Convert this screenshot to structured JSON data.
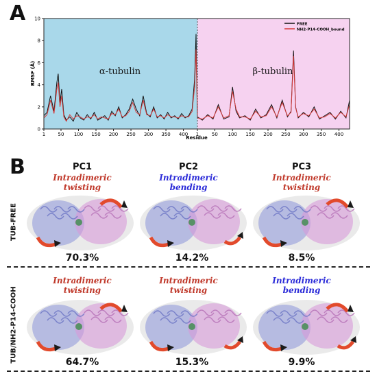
{
  "panel_a": {
    "letter": "A"
  },
  "panel_b": {
    "letter": "B"
  },
  "colors": {
    "alpha_region": "#a9d8ea",
    "beta_region": "#f6d2f0",
    "free_line": "#111111",
    "bound_line": "#d63a3a",
    "red_text": "#c0392b",
    "blue_text": "#2a2ad8",
    "alpha_subunit": "#8b93d8",
    "beta_subunit": "#d79ad8"
  },
  "chart_data": {
    "type": "line",
    "ylabel": "RMSF (Å)",
    "xlabel": "Residue",
    "ylim": [
      0,
      10
    ],
    "yticks": [
      "0",
      "2",
      "4",
      "6",
      "8",
      "10"
    ],
    "regions": [
      {
        "name": "α-tubulin",
        "xticks": [
          "1",
          "50",
          "100",
          "150",
          "200",
          "250",
          "300",
          "350",
          "400"
        ],
        "length": 440
      },
      {
        "name": "β-tubulin",
        "xticks": [
          "1",
          "50",
          "100",
          "150",
          "200",
          "250",
          "300",
          "350",
          "400"
        ],
        "length": 430
      }
    ],
    "legend_position": "top-right",
    "series": [
      {
        "name": "FREE",
        "color": "#111111",
        "alpha_x": [
          1,
          10,
          20,
          30,
          38,
          42,
          47,
          52,
          58,
          65,
          75,
          85,
          95,
          105,
          115,
          125,
          135,
          145,
          155,
          165,
          175,
          185,
          195,
          205,
          215,
          225,
          235,
          245,
          255,
          265,
          275,
          285,
          295,
          305,
          315,
          325,
          335,
          345,
          355,
          365,
          375,
          385,
          395,
          405,
          415,
          425,
          432,
          436,
          440
        ],
        "alpha_y": [
          1.2,
          1.5,
          3.0,
          1.6,
          4.2,
          5.0,
          2.4,
          3.6,
          1.3,
          0.8,
          1.1,
          0.7,
          1.5,
          1.0,
          0.8,
          1.3,
          0.9,
          1.5,
          0.8,
          1.0,
          1.2,
          0.8,
          1.6,
          1.2,
          2.0,
          1.0,
          1.3,
          1.8,
          2.7,
          1.8,
          1.2,
          3.0,
          1.4,
          1.1,
          2.0,
          1.0,
          1.3,
          0.9,
          1.5,
          1.0,
          1.2,
          0.9,
          1.4,
          1.0,
          1.2,
          1.8,
          4.5,
          8.6,
          1.0
        ],
        "beta_x": [
          1,
          15,
          30,
          45,
          60,
          75,
          90,
          100,
          110,
          120,
          135,
          150,
          165,
          180,
          195,
          210,
          225,
          240,
          255,
          265,
          272,
          278,
          285,
          300,
          315,
          330,
          345,
          360,
          375,
          390,
          405,
          420,
          430
        ],
        "beta_y": [
          1.1,
          0.8,
          1.3,
          0.9,
          2.2,
          0.9,
          1.1,
          3.8,
          1.6,
          1.0,
          1.2,
          0.8,
          1.8,
          1.0,
          1.3,
          2.2,
          1.0,
          2.6,
          1.1,
          1.6,
          7.1,
          2.0,
          1.0,
          1.5,
          1.1,
          2.0,
          0.9,
          1.2,
          1.5,
          0.9,
          1.6,
          1.0,
          2.6
        ]
      },
      {
        "name": "NH2-P14-COOH_bound",
        "color": "#d63a3a",
        "alpha_x": [
          1,
          10,
          20,
          30,
          38,
          42,
          47,
          52,
          58,
          65,
          75,
          85,
          95,
          105,
          115,
          125,
          135,
          145,
          155,
          165,
          175,
          185,
          195,
          205,
          215,
          225,
          235,
          245,
          255,
          265,
          275,
          285,
          295,
          305,
          315,
          325,
          335,
          345,
          355,
          365,
          375,
          385,
          395,
          405,
          415,
          425,
          432,
          436,
          440
        ],
        "alpha_y": [
          1.0,
          1.3,
          2.6,
          1.4,
          3.6,
          4.2,
          2.0,
          3.0,
          1.1,
          0.7,
          1.3,
          0.9,
          1.2,
          1.1,
          0.9,
          1.1,
          1.0,
          1.3,
          0.9,
          1.1,
          1.0,
          0.9,
          1.4,
          1.3,
          1.8,
          1.1,
          1.2,
          1.6,
          2.4,
          1.5,
          1.3,
          2.6,
          1.3,
          1.2,
          1.8,
          1.1,
          1.2,
          1.0,
          1.3,
          1.1,
          1.1,
          1.0,
          1.2,
          1.1,
          1.1,
          1.6,
          3.8,
          7.2,
          1.1
        ],
        "beta_x": [
          1,
          15,
          30,
          45,
          60,
          75,
          90,
          100,
          110,
          120,
          135,
          150,
          165,
          180,
          195,
          210,
          225,
          240,
          255,
          265,
          272,
          278,
          285,
          300,
          315,
          330,
          345,
          360,
          375,
          390,
          405,
          420,
          430
        ],
        "beta_y": [
          1.0,
          0.9,
          1.2,
          1.0,
          2.0,
          1.0,
          1.2,
          3.4,
          1.8,
          1.1,
          1.1,
          0.9,
          1.6,
          1.1,
          1.2,
          2.0,
          1.1,
          2.4,
          1.2,
          1.5,
          6.6,
          1.9,
          1.1,
          1.4,
          1.2,
          1.8,
          1.0,
          1.1,
          1.4,
          1.0,
          1.5,
          1.1,
          2.2
        ]
      }
    ]
  },
  "pc_titles": [
    "PC1",
    "PC2",
    "PC3"
  ],
  "rows": [
    {
      "label": "TUB-FREE",
      "cells": [
        {
          "motion_line1": "Intradimeric",
          "motion_line2": "twisting",
          "motion_color": "red",
          "percent": "70.3%"
        },
        {
          "motion_line1": "Intradimeric",
          "motion_line2": "bending",
          "motion_color": "blue",
          "percent": "14.2%"
        },
        {
          "motion_line1": "Intradimeric",
          "motion_line2": "twisting",
          "motion_color": "red",
          "percent": "8.5%"
        }
      ]
    },
    {
      "label": "TUB/NH2-P14-COOH",
      "cells": [
        {
          "motion_line1": "Intradimeric",
          "motion_line2": "twisting",
          "motion_color": "red",
          "percent": "64.7%"
        },
        {
          "motion_line1": "Intradimeric",
          "motion_line2": "twisting",
          "motion_color": "red",
          "percent": "15.3%"
        },
        {
          "motion_line1": "Intradimeric",
          "motion_line2": "bending",
          "motion_color": "blue",
          "percent": "9.9%"
        }
      ]
    }
  ]
}
